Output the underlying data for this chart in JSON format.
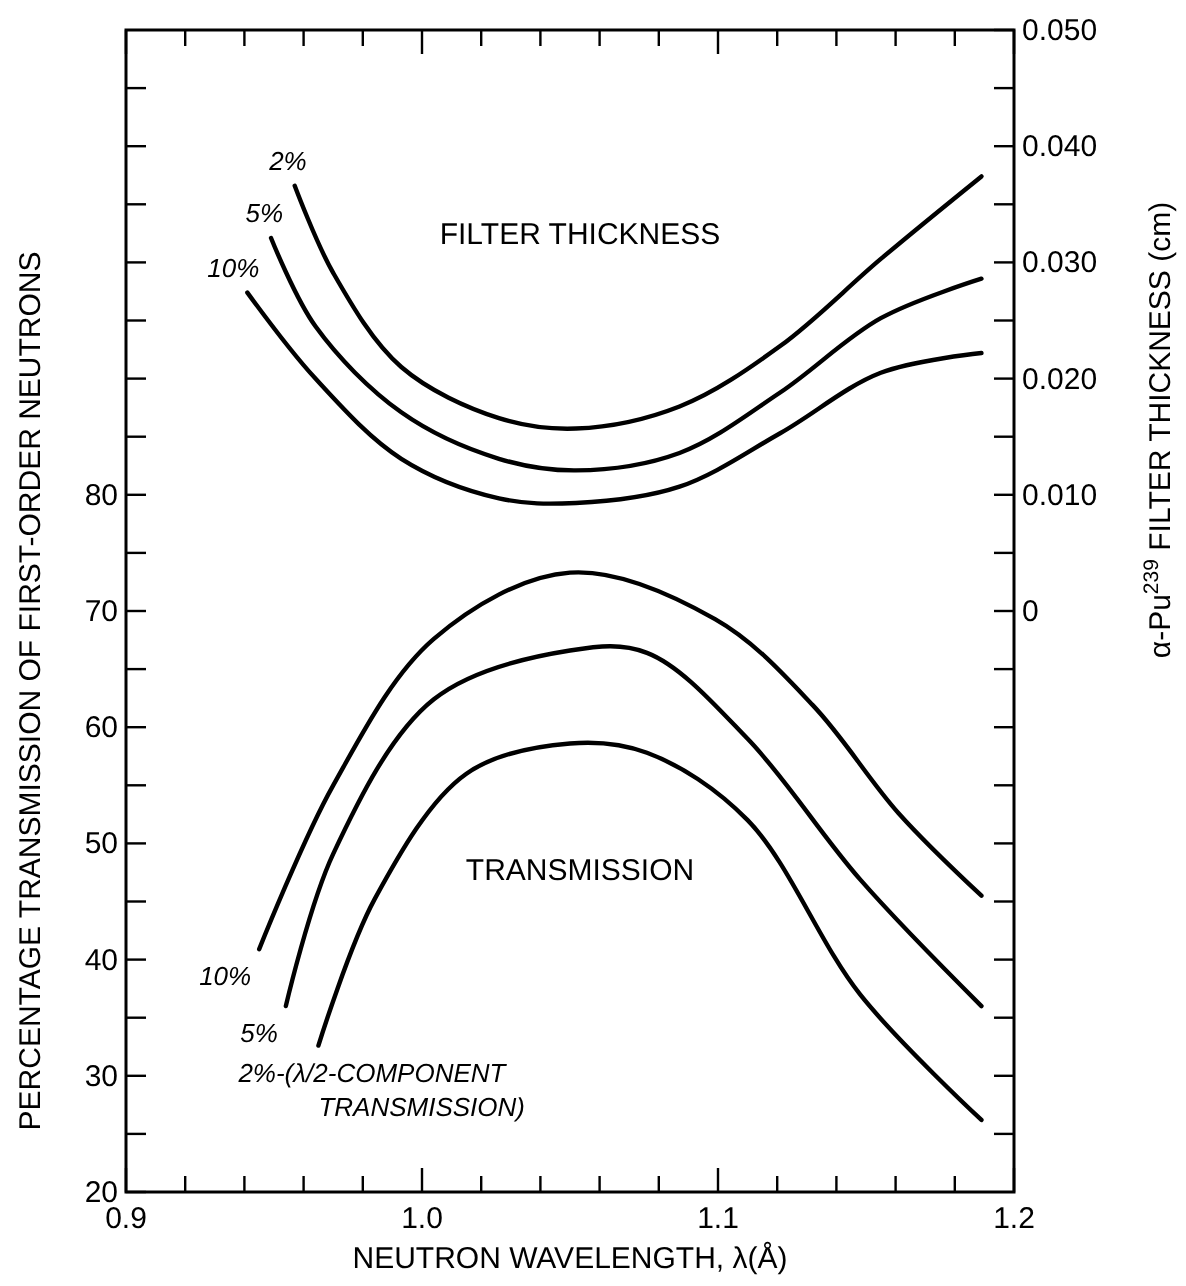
{
  "chart_data": {
    "type": "line",
    "xlabel": "NEUTRON WAVELENGTH, λ(Å)",
    "ylabel": "PERCENTAGE TRANSMISSION OF FIRST-ORDER NEUTRONS",
    "y2label": "α-Pu$^{239}$ FILTER THICKNESS (cm)",
    "xlim": [
      0.9,
      1.2
    ],
    "xticks": [
      0.9,
      {
        "value": 0.92,
        "label": null
      },
      {
        "value": 0.94,
        "label": null
      },
      {
        "value": 0.96,
        "label": null
      },
      {
        "value": 0.98,
        "label": null
      },
      {
        "value": 1.0,
        "label": "1.0"
      },
      {
        "value": 1.02,
        "label": null
      },
      {
        "value": 1.04,
        "label": null
      },
      {
        "value": 1.06,
        "label": null
      },
      {
        "value": 1.08,
        "label": null
      },
      1.1,
      {
        "value": 1.12,
        "label": null
      },
      {
        "value": 1.14,
        "label": null
      },
      {
        "value": 1.16,
        "label": null
      },
      {
        "value": 1.18,
        "label": null
      },
      1.2
    ],
    "ylim": [
      20,
      120
    ],
    "yticks": [
      20,
      {
        "value": 25,
        "label": null
      },
      30,
      {
        "value": 35,
        "label": null
      },
      40,
      {
        "value": 45,
        "label": null
      },
      50,
      {
        "value": 55,
        "label": null
      },
      60,
      {
        "value": 65,
        "label": null
      },
      70,
      {
        "value": 75,
        "label": null
      },
      80,
      {
        "value": 85,
        "label": null
      },
      {
        "value": 90,
        "label": null
      },
      {
        "value": 95,
        "label": null
      },
      {
        "value": 100,
        "label": null
      },
      {
        "value": 105,
        "label": null
      },
      {
        "value": 110,
        "label": null
      },
      {
        "value": 115,
        "label": null
      }
    ],
    "y2lim": [
      -0.05,
      0.05
    ],
    "y2ticks": [
      {
        "value": -0.045,
        "label": null
      },
      {
        "value": -0.04,
        "label": null
      },
      {
        "value": -0.035,
        "label": null
      },
      {
        "value": -0.03,
        "label": null
      },
      {
        "value": -0.025,
        "label": null
      },
      {
        "value": -0.02,
        "label": null
      },
      {
        "value": -0.015,
        "label": null
      },
      {
        "value": -0.01,
        "label": null
      },
      {
        "value": -0.005,
        "label": null
      },
      0,
      {
        "value": 0.005,
        "label": null
      },
      {
        "value": 0.01,
        "label": "0.010"
      },
      {
        "value": 0.015,
        "label": null
      },
      {
        "value": 0.02,
        "label": "0.020"
      },
      {
        "value": 0.025,
        "label": null
      },
      {
        "value": 0.03,
        "label": "0.030"
      },
      {
        "value": 0.035,
        "label": null
      },
      {
        "value": 0.04,
        "label": "0.040"
      },
      {
        "value": 0.045,
        "label": null
      },
      {
        "value": 0.05,
        "label": "0.050"
      }
    ],
    "grid": false,
    "marker": "none",
    "line_style": "solid",
    "series": [
      {
        "name": "2%",
        "color": "#000000",
        "axis": "y2",
        "x": [
          0.957,
          0.97,
          0.993,
          1.026,
          1.052,
          1.087,
          1.121,
          1.155,
          1.189
        ],
        "values": [
          0.0366,
          0.0291,
          0.021,
          0.0166,
          0.0157,
          0.0176,
          0.0228,
          0.0303,
          0.0374
        ]
      },
      {
        "name": "5%",
        "color": "#000000",
        "axis": "y2",
        "x": [
          0.949,
          0.964,
          0.993,
          1.026,
          1.052,
          1.087,
          1.121,
          1.155,
          1.189
        ],
        "values": [
          0.0321,
          0.0245,
          0.0171,
          0.0131,
          0.0121,
          0.0136,
          0.0188,
          0.0252,
          0.0286
        ]
      },
      {
        "name": "10%",
        "color": "#000000",
        "axis": "y2",
        "x": [
          0.941,
          0.964,
          0.993,
          1.026,
          1.052,
          1.087,
          1.121,
          1.155,
          1.189
        ],
        "values": [
          0.0274,
          0.02,
          0.0131,
          0.0097,
          0.0093,
          0.0107,
          0.0153,
          0.0205,
          0.0222
        ]
      },
      {
        "name": "10%",
        "color": "#000000",
        "x": [
          0.945,
          0.97,
          1.004,
          1.05,
          1.099,
          1.132,
          1.161,
          1.189
        ],
        "values": [
          40.9,
          55,
          67.6,
          73.3,
          69.3,
          61.9,
          52.6,
          45.5
        ]
      },
      {
        "name": "5%",
        "color": "#000000",
        "x": [
          0.954,
          0.97,
          1.004,
          1.05,
          1.076,
          1.11,
          1.148,
          1.189
        ],
        "values": [
          36.0,
          49.1,
          62.4,
          66.6,
          66.4,
          59,
          46.9,
          36.0
        ]
      },
      {
        "name": "2%-(λ/2-COMPONENT TRANSMISSION)",
        "color": "#000000",
        "x": [
          0.965,
          0.984,
          1.015,
          1.05,
          1.076,
          1.11,
          1.148,
          1.189
        ],
        "values": [
          32.6,
          45.2,
          56,
          58.6,
          57.8,
          52,
          37,
          26.2
        ]
      }
    ],
    "annotations": [
      "FILTER THICKNESS",
      "TRANSMISSION"
    ]
  }
}
